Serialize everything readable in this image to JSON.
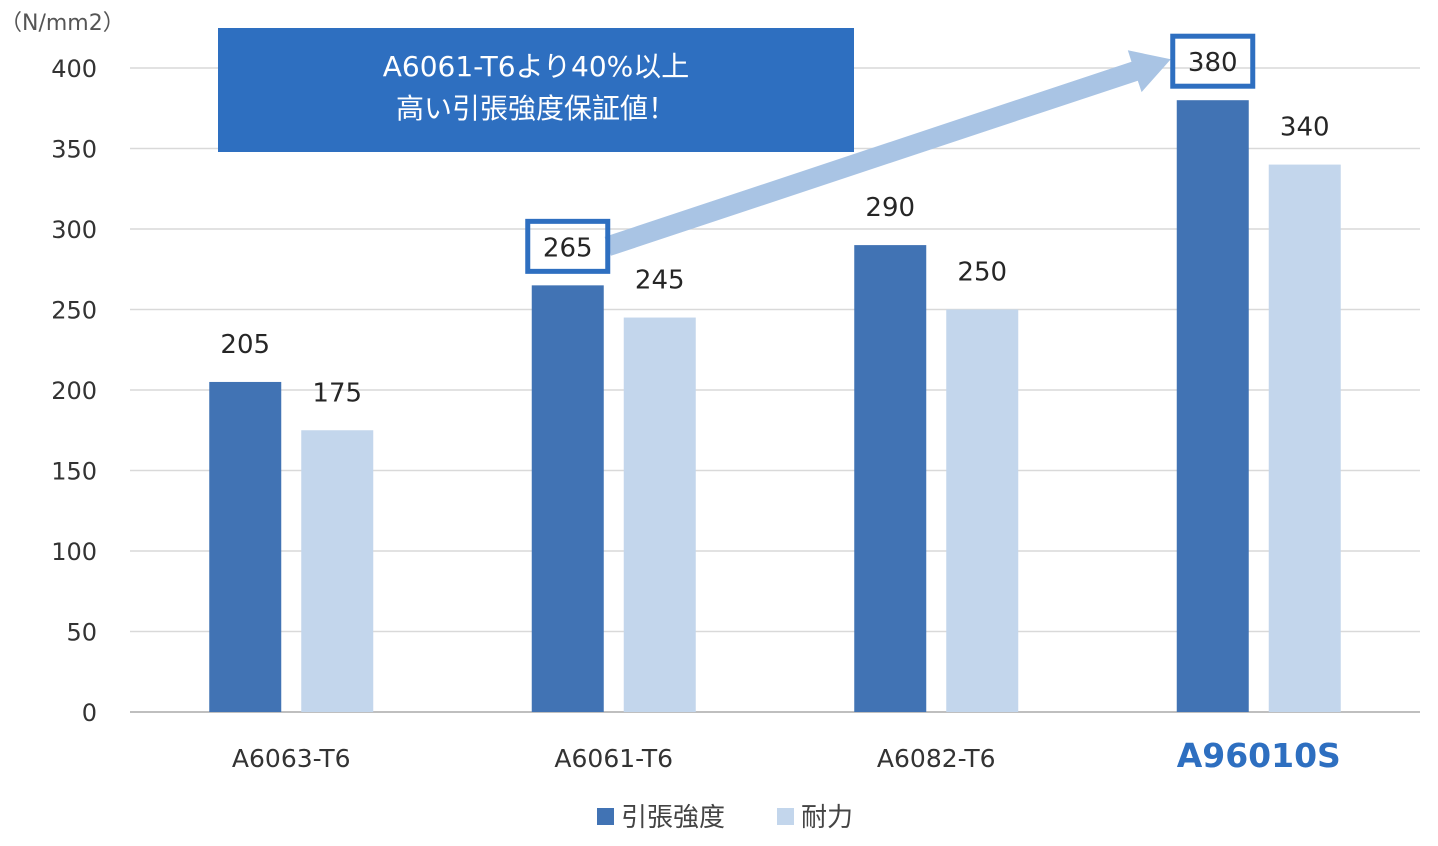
{
  "chart_data": {
    "type": "bar",
    "categories": [
      "A6063-T6",
      "A6061-T6",
      "A6082-T6",
      "A96010S"
    ],
    "series": [
      {
        "name": "引張強度",
        "values": [
          205,
          265,
          290,
          380
        ],
        "color": "#4173b4"
      },
      {
        "name": "耐力",
        "values": [
          175,
          245,
          250,
          340
        ],
        "color": "#c3d6ec"
      }
    ],
    "ylim": [
      0,
      400
    ],
    "yticks": [
      0,
      50,
      100,
      150,
      200,
      250,
      300,
      350,
      400
    ],
    "unit_label": "（N/mm2）",
    "grid": true,
    "legend_position": "bottom",
    "highlight_category": "A96010S",
    "highlight_color": "#2e6fc0",
    "boxed_values": [
      {
        "category": "A6061-T6",
        "series": "引張強度",
        "value": 265
      },
      {
        "category": "A96010S",
        "series": "引張強度",
        "value": 380
      }
    ],
    "callout": {
      "lines": [
        "A6061-T6より40%以上",
        "高い引張強度保証値！"
      ],
      "background": "#2e6fc0",
      "arrow_color": "#a9c4e4",
      "from_category": "A6061-T6",
      "to_category": "A96010S"
    }
  }
}
